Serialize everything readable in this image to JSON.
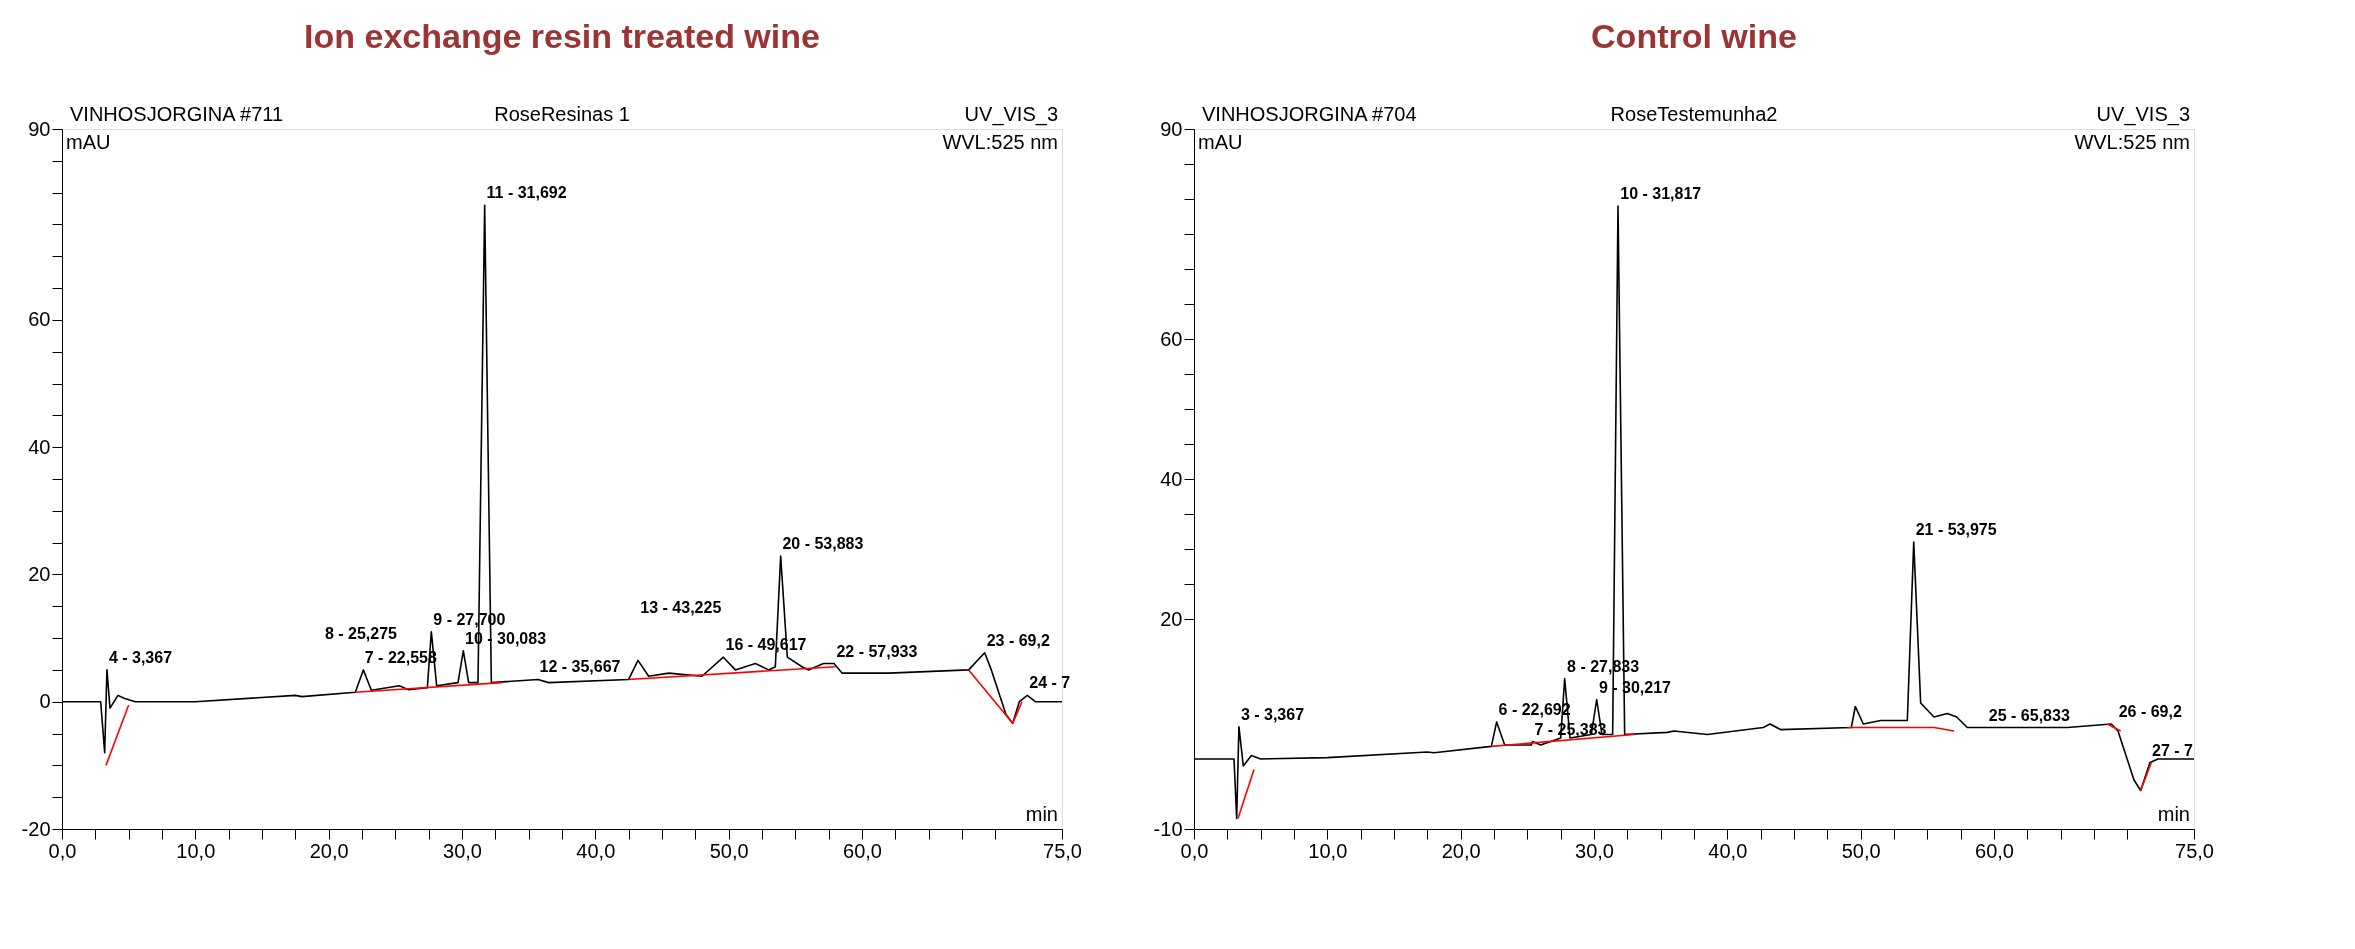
{
  "chart_data": [
    {
      "type": "line",
      "title": "Ion exchange resin treated wine",
      "xlabel": "min",
      "ylabel": "mAU",
      "xlim": [
        0,
        75
      ],
      "ylim": [
        -20,
        90
      ],
      "xticks": [
        {
          "value": 0,
          "label": "0,0"
        },
        {
          "value": 2.5,
          "label": null
        },
        {
          "value": 5,
          "label": null
        },
        {
          "value": 7.5,
          "label": null
        },
        {
          "value": 10,
          "label": "10,0"
        },
        {
          "value": 12.5,
          "label": null
        },
        {
          "value": 15,
          "label": null
        },
        {
          "value": 17.5,
          "label": null
        },
        {
          "value": 20,
          "label": "20,0"
        },
        {
          "value": 22.5,
          "label": null
        },
        {
          "value": 25,
          "label": null
        },
        {
          "value": 27.5,
          "label": null
        },
        {
          "value": 30,
          "label": "30,0"
        },
        {
          "value": 32.5,
          "label": null
        },
        {
          "value": 35,
          "label": null
        },
        {
          "value": 37.5,
          "label": null
        },
        {
          "value": 40,
          "label": "40,0"
        },
        {
          "value": 42.5,
          "label": null
        },
        {
          "value": 45,
          "label": null
        },
        {
          "value": 47.5,
          "label": null
        },
        {
          "value": 50,
          "label": "50,0"
        },
        {
          "value": 52.5,
          "label": null
        },
        {
          "value": 55,
          "label": null
        },
        {
          "value": 57.5,
          "label": null
        },
        {
          "value": 60,
          "label": "60,0"
        },
        {
          "value": 62.5,
          "label": null
        },
        {
          "value": 65,
          "label": null
        },
        {
          "value": 67.5,
          "label": null
        },
        {
          "value": 70,
          "label": null
        },
        {
          "value": 75,
          "label": "75,0"
        }
      ],
      "yticks": [
        -20,
        {
          "value": -15,
          "label": null
        },
        {
          "value": -10,
          "label": null
        },
        {
          "value": -5,
          "label": null
        },
        0,
        {
          "value": 5,
          "label": null
        },
        {
          "value": 10,
          "label": null
        },
        {
          "value": 15,
          "label": null
        },
        20,
        {
          "value": 25,
          "label": null
        },
        {
          "value": 30,
          "label": null
        },
        {
          "value": 35,
          "label": null
        },
        40,
        {
          "value": 45,
          "label": null
        },
        {
          "value": 50,
          "label": null
        },
        {
          "value": 55,
          "label": null
        },
        60,
        {
          "value": 65,
          "label": null
        },
        {
          "value": 70,
          "label": null
        },
        {
          "value": 75,
          "label": null
        },
        {
          "value": 80,
          "label": null
        },
        {
          "value": 85,
          "label": null
        },
        90
      ],
      "grid": false,
      "series": [
        {
          "color": "#000000",
          "x": [
            0,
            2.9,
            3.2,
            3.37,
            3.6,
            4.2,
            4.7,
            5.5,
            10,
            17.5,
            18,
            22,
            22.6,
            23.2,
            25.3,
            26,
            27.4,
            27.7,
            28.1,
            29.7,
            30.1,
            30.5,
            31.2,
            31.7,
            32.2,
            35.7,
            36.5,
            42.5,
            43.2,
            44,
            45.5,
            48,
            49.6,
            50.5,
            52,
            53,
            53.5,
            53.9,
            54.4,
            55.5,
            56,
            57.1,
            57.9,
            58.5,
            62,
            68,
            69.2,
            69.7,
            70.8,
            71.3,
            71.8,
            72.4,
            73,
            75
          ],
          "values": [
            0,
            0,
            -8,
            5,
            -1,
            1,
            0.5,
            0,
            0,
            1,
            0.8,
            1.5,
            5,
            1.8,
            2.5,
            1.9,
            2.2,
            11,
            2.5,
            3,
            8,
            3,
            3,
            78,
            3,
            3.5,
            3,
            3.5,
            6.5,
            4,
            4.5,
            4,
            7,
            5,
            6,
            5,
            5.5,
            22.9,
            7,
            5.5,
            5,
            6,
            6,
            4.5,
            4.5,
            5,
            7.7,
            5,
            -2,
            -3.4,
            0,
            1,
            0,
            0
          ]
        },
        {
          "color": "#ff0000",
          "x": [
            3.3,
            5,
            5.1,
            22,
            33,
            33.1,
            42.5,
            58,
            58.1,
            68,
            71.3,
            72
          ],
          "values": [
            -10,
            -0.5,
            null,
            1.5,
            3,
            null,
            3.5,
            5.5,
            null,
            5,
            -3.4,
            0
          ]
        }
      ],
      "annotations": [
        "VINHOSJORGINA #711",
        "RoseResinas 1",
        "UV_VIS_3",
        "WVL:525 nm",
        {
          "text": "11 - 31,692",
          "x": 31.692,
          "y": 78
        },
        {
          "text": "20 - 53,883",
          "x": 53.883,
          "y": 22.9
        },
        {
          "text": "9 - 27,700",
          "x": 27.7,
          "y": 11
        },
        {
          "text": "10 - 30,083",
          "x": 30.083,
          "y": 8
        },
        {
          "text": "7 - 22,558",
          "x": 22.558,
          "y": 5
        },
        {
          "text": "8 - 25,275",
          "x": 25.275,
          "y": 2.5
        },
        {
          "text": "4 - 3,367",
          "x": 3.367,
          "y": 5
        },
        {
          "text": "12 - 35,667",
          "x": 35.667,
          "y": 3.5
        },
        {
          "text": "13 - 43,225",
          "x": 43.225,
          "y": 6.5
        },
        {
          "text": "16 - 49,617",
          "x": 49.617,
          "y": 7
        },
        {
          "text": "22 - 57,933",
          "x": 57.933,
          "y": 6
        },
        {
          "text": "23 - 69,2",
          "x": 69.2,
          "y": 7.7
        },
        {
          "text": "24 - 7",
          "x": 72.4,
          "y": 1
        }
      ]
    },
    {
      "type": "line",
      "title": "Control wine",
      "xlabel": "min",
      "ylabel": "mAU",
      "xlim": [
        0,
        75
      ],
      "ylim": [
        -10,
        90
      ],
      "xticks": [
        {
          "value": 0,
          "label": "0,0"
        },
        {
          "value": 2.5,
          "label": null
        },
        {
          "value": 5,
          "label": null
        },
        {
          "value": 7.5,
          "label": null
        },
        {
          "value": 10,
          "label": "10,0"
        },
        {
          "value": 12.5,
          "label": null
        },
        {
          "value": 15,
          "label": null
        },
        {
          "value": 17.5,
          "label": null
        },
        {
          "value": 20,
          "label": "20,0"
        },
        {
          "value": 22.5,
          "label": null
        },
        {
          "value": 25,
          "label": null
        },
        {
          "value": 27.5,
          "label": null
        },
        {
          "value": 30,
          "label": "30,0"
        },
        {
          "value": 32.5,
          "label": null
        },
        {
          "value": 35,
          "label": null
        },
        {
          "value": 37.5,
          "label": null
        },
        {
          "value": 40,
          "label": "40,0"
        },
        {
          "value": 42.5,
          "label": null
        },
        {
          "value": 45,
          "label": null
        },
        {
          "value": 47.5,
          "label": null
        },
        {
          "value": 50,
          "label": "50,0"
        },
        {
          "value": 52.5,
          "label": null
        },
        {
          "value": 55,
          "label": null
        },
        {
          "value": 57.5,
          "label": null
        },
        {
          "value": 60,
          "label": "60,0"
        },
        {
          "value": 62.5,
          "label": null
        },
        {
          "value": 65,
          "label": null
        },
        {
          "value": 67.5,
          "label": null
        },
        {
          "value": 70,
          "label": null
        },
        {
          "value": 75,
          "label": "75,0"
        }
      ],
      "yticks": [
        -10,
        20,
        {
          "value": 25,
          "label": null
        },
        {
          "value": 30,
          "label": null
        },
        {
          "value": 35,
          "label": null
        },
        40,
        {
          "value": 45,
          "label": null
        },
        {
          "value": 50,
          "label": null
        },
        {
          "value": 55,
          "label": null
        },
        60,
        {
          "value": 65,
          "label": null
        },
        {
          "value": 70,
          "label": null
        },
        {
          "value": 75,
          "label": null
        },
        {
          "value": 80,
          "label": null
        },
        {
          "value": 85,
          "label": null
        },
        90
      ],
      "grid": false,
      "series": [
        {
          "color": "#000000",
          "x": [
            0,
            3.0,
            3.2,
            3.37,
            3.7,
            4.3,
            5,
            10,
            17.5,
            18,
            22.3,
            22.7,
            23.3,
            25.3,
            25.4,
            26,
            27.5,
            27.8,
            28.2,
            29.8,
            30.2,
            30.6,
            31.4,
            31.8,
            32.3,
            35.5,
            36,
            38.5,
            42.7,
            43.2,
            44,
            49.3,
            49.6,
            50.2,
            51.5,
            53.5,
            53.98,
            54.5,
            55.5,
            56.5,
            57.2,
            58,
            65.5,
            68.8,
            69.3,
            70.5,
            71,
            71.7,
            72.3,
            75
          ],
          "values": [
            0,
            0,
            -8.5,
            4.6,
            -1,
            0.5,
            0,
            0.2,
            1,
            0.9,
            1.8,
            5.3,
            2,
            2,
            2.5,
            2,
            3,
            11.5,
            3,
            3.5,
            8.5,
            3.5,
            3.5,
            79,
            3.5,
            3.8,
            4,
            3.5,
            4.5,
            5,
            4.2,
            4.5,
            7.5,
            5,
            5.5,
            5.5,
            31,
            8,
            6,
            6.5,
            6,
            4.5,
            4.5,
            5,
            4,
            -3,
            -4.5,
            -0.5,
            0,
            0
          ]
        },
        {
          "color": "#ff0000",
          "x": [
            3.3,
            4.5,
            4.6,
            22.3,
            33,
            33.1,
            49,
            55.5,
            57,
            57.1,
            68.5,
            69.5,
            69.6,
            71,
            71.8
          ],
          "values": [
            -8.5,
            -1.5,
            null,
            1.8,
            3.5,
            null,
            4.5,
            4.5,
            4,
            null,
            5,
            4,
            null,
            -4.5,
            -0.5
          ]
        }
      ],
      "annotations": [
        "VINHOSJORGINA #704",
        "RoseTestemunha2",
        "UV_VIS_3",
        "WVL:525 nm",
        {
          "text": "10 - 31,817",
          "x": 31.817,
          "y": 79
        },
        {
          "text": "21 - 53,975",
          "x": 53.975,
          "y": 31
        },
        {
          "text": "8 - 27,833",
          "x": 27.833,
          "y": 11.5
        },
        {
          "text": "9 - 30,217",
          "x": 30.217,
          "y": 8.5
        },
        {
          "text": "6 - 22,692",
          "x": 22.692,
          "y": 5.3
        },
        {
          "text": "7 - 25,383",
          "x": 25.383,
          "y": 2.5
        },
        {
          "text": "3 - 3,367",
          "x": 3.367,
          "y": 4.6
        },
        {
          "text": "25 - 65,833",
          "x": 65.833,
          "y": 4.5
        },
        {
          "text": "26 - 69,2",
          "x": 69.2,
          "y": 5
        },
        {
          "text": "27 - 7",
          "x": 71.7,
          "y": -0.5
        }
      ]
    }
  ]
}
